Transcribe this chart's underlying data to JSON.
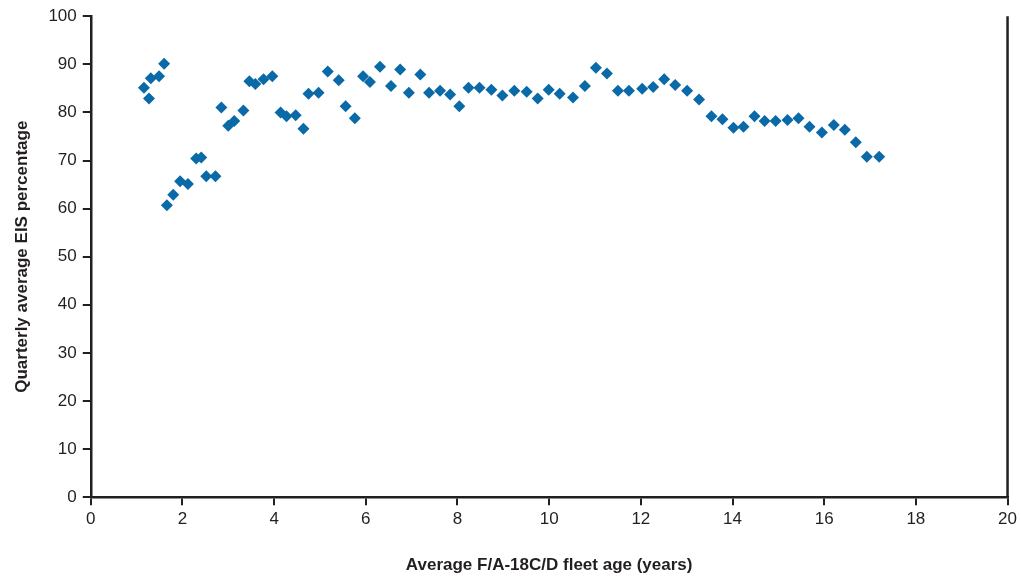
{
  "chart_data": {
    "type": "scatter",
    "xlabel": "Average F/A-18C/D fleet age (years)",
    "ylabel": "Quarterly average EIS percentage",
    "marker": "diamond",
    "grid": false,
    "xlim": [
      0,
      20
    ],
    "xticks": [
      0,
      2,
      4,
      6,
      8,
      10,
      12,
      14,
      16,
      18,
      20
    ],
    "ylim": [
      0,
      100
    ],
    "yticks": [
      0,
      10,
      20,
      30,
      40,
      50,
      60,
      70,
      80,
      90,
      100
    ],
    "series": [
      {
        "color": "#0a6aa8",
        "x": [
          1.16,
          1.27,
          1.31,
          1.49,
          1.6,
          1.66,
          1.8,
          1.95,
          2.12,
          2.3,
          2.41,
          2.52,
          2.72,
          2.85,
          3.0,
          3.13,
          3.33,
          3.46,
          3.59,
          3.77,
          3.96,
          4.14,
          4.27,
          4.47,
          4.64,
          4.75,
          4.97,
          5.17,
          5.41,
          5.56,
          5.76,
          5.94,
          6.09,
          6.31,
          6.55,
          6.75,
          6.94,
          7.19,
          7.38,
          7.62,
          7.84,
          8.04,
          8.24,
          8.48,
          8.74,
          8.98,
          9.24,
          9.51,
          9.75,
          9.99,
          10.23,
          10.52,
          10.78,
          11.02,
          11.26,
          11.5,
          11.74,
          12.03,
          12.27,
          12.51,
          12.75,
          13.01,
          13.27,
          13.54,
          13.78,
          14.02,
          14.24,
          14.48,
          14.7,
          14.94,
          15.2,
          15.44,
          15.68,
          15.95,
          16.21,
          16.45,
          16.69,
          16.93,
          17.2
        ],
        "values": [
          85.1,
          82.9,
          87.1,
          87.5,
          90.1,
          60.7,
          62.9,
          65.7,
          65.1,
          70.4,
          70.6,
          66.7,
          66.7,
          81.0,
          77.2,
          78.2,
          80.4,
          86.5,
          85.9,
          86.9,
          87.5,
          80.0,
          79.2,
          79.4,
          76.6,
          83.9,
          84.1,
          88.5,
          86.7,
          81.3,
          78.8,
          87.5,
          86.3,
          89.5,
          85.5,
          88.9,
          84.1,
          87.9,
          84.1,
          84.5,
          83.7,
          81.3,
          85.1,
          85.1,
          84.7,
          83.5,
          84.5,
          84.3,
          82.9,
          84.7,
          83.9,
          83.1,
          85.5,
          89.3,
          88.1,
          84.5,
          84.5,
          84.9,
          85.3,
          86.9,
          85.7,
          84.5,
          82.7,
          79.2,
          78.6,
          76.8,
          77.0,
          79.2,
          78.2,
          78.2,
          78.4,
          78.8,
          77.0,
          75.8,
          77.4,
          76.4,
          73.8,
          70.8,
          70.8
        ]
      }
    ]
  }
}
